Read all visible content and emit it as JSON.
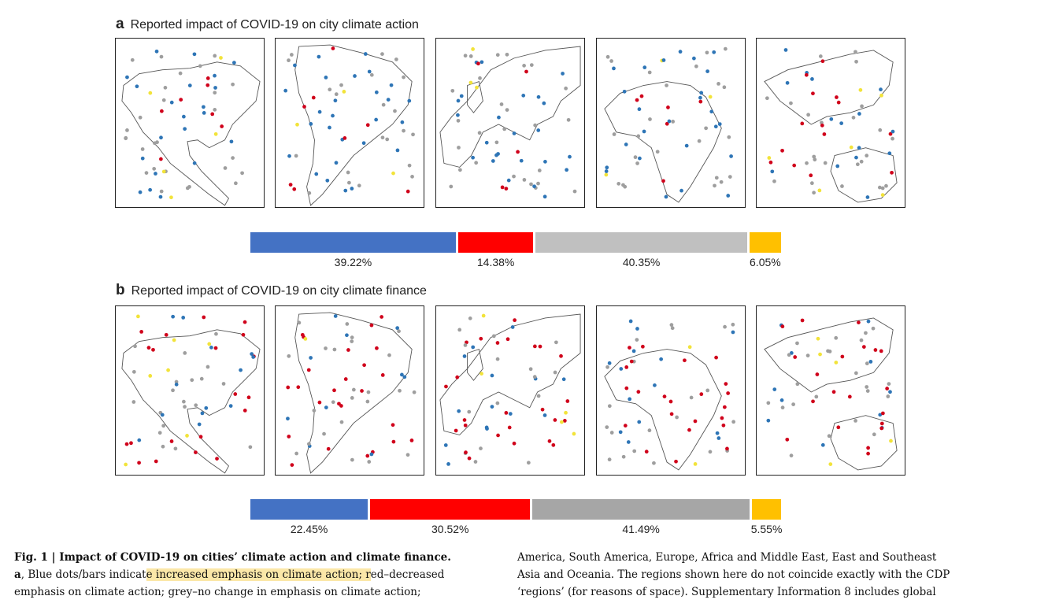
{
  "panel_a": {
    "letter": "a",
    "title": "Reported impact of COVID-19 on city climate action",
    "shares": [
      {
        "value": 39.22,
        "label": "39.22%",
        "color": "#4472c4"
      },
      {
        "value": 14.38,
        "label": "14.38%",
        "color": "#ff0000"
      },
      {
        "value": 40.35,
        "label": "40.35%",
        "color": "#c0c0c0"
      },
      {
        "value": 6.05,
        "label": "6.05%",
        "color": "#ffc000"
      }
    ]
  },
  "panel_b": {
    "letter": "b",
    "title": "Reported impact of COVID-19 on city climate finance",
    "shares": [
      {
        "value": 22.45,
        "label": "22.45%",
        "color": "#4472c4"
      },
      {
        "value": 30.52,
        "label": "30.52%",
        "color": "#ff0000"
      },
      {
        "value": 41.49,
        "label": "41.49%",
        "color": "#a6a6a6"
      },
      {
        "value": 5.55,
        "label": "5.55%",
        "color": "#ffc000"
      }
    ]
  },
  "dot_colors": {
    "increased": "#2e75b6",
    "decreased": "#d0021b",
    "no_change": "#9e9e9e",
    "other": "#f2e33a"
  },
  "caption": {
    "fig_label": "Fig. 1 | Impact of COVID-19 on cities’ climate action and climate finance.",
    "line2_bold": "a",
    "line2_pre": ", Blue dots/bars indicat",
    "line2_highlight": "e increased emphasis on climate action; r",
    "line2_post": "ed–decreased",
    "line3": "emphasis on climate action; grey–no change in emphasis on climate action;",
    "right1": "America, South America, Europe, Africa and Middle East, East and Southeast",
    "right2": "Asia and Oceania. The regions shown here do not coincide exactly with the CDP",
    "right3": "‘regions’ (for reasons of space). Supplementary Information 8 includes global"
  }
}
